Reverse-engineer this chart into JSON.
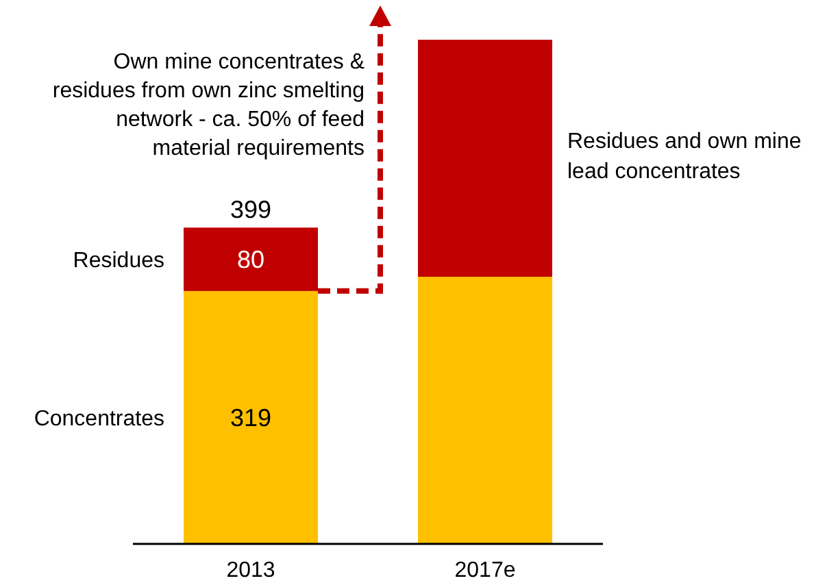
{
  "chart_data": {
    "type": "bar",
    "stacked": true,
    "categories": [
      "2013",
      "2017e"
    ],
    "series": [
      {
        "name": "Concentrates",
        "color": "#ffc000",
        "values": [
          319,
          337
        ],
        "value_labels": [
          "319",
          null
        ]
      },
      {
        "name": "Residues",
        "color": "#c00000",
        "values": [
          80,
          299
        ],
        "value_labels": [
          "80",
          null
        ]
      }
    ],
    "totals": [
      "399",
      null
    ],
    "annotations": [
      "Own mine concentrates & residues from own zinc smelting network - ca. 50% of feed material requirements",
      "Residues and own mine lead concentrates"
    ]
  }
}
